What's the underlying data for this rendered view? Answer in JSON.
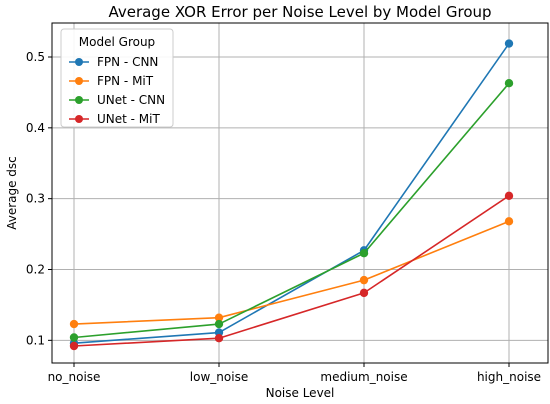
{
  "chart_data": {
    "type": "line",
    "title": "Average XOR Error per Noise Level by Model Group",
    "xlabel": "Noise Level",
    "ylabel": "Average dsc",
    "categories": [
      "no_noise",
      "low_noise",
      "medium_noise",
      "high_noise"
    ],
    "ylim": [
      0.068,
      0.548
    ],
    "yticks": [
      "0.1",
      "0.2",
      "0.3",
      "0.4",
      "0.5"
    ],
    "grid": true,
    "legend": {
      "title": "Model Group",
      "placement": "top-left"
    },
    "series": [
      {
        "name": "FPN - CNN",
        "color": "#1f77b4",
        "values": [
          0.096,
          0.111,
          0.227,
          0.519
        ]
      },
      {
        "name": "FPN - MiT",
        "color": "#ff7f0e",
        "values": [
          0.123,
          0.132,
          0.185,
          0.268
        ]
      },
      {
        "name": "UNet - CNN",
        "color": "#2ca02c",
        "values": [
          0.104,
          0.123,
          0.223,
          0.463
        ]
      },
      {
        "name": "UNet - MiT",
        "color": "#d62728",
        "values": [
          0.092,
          0.103,
          0.167,
          0.304
        ]
      }
    ]
  }
}
